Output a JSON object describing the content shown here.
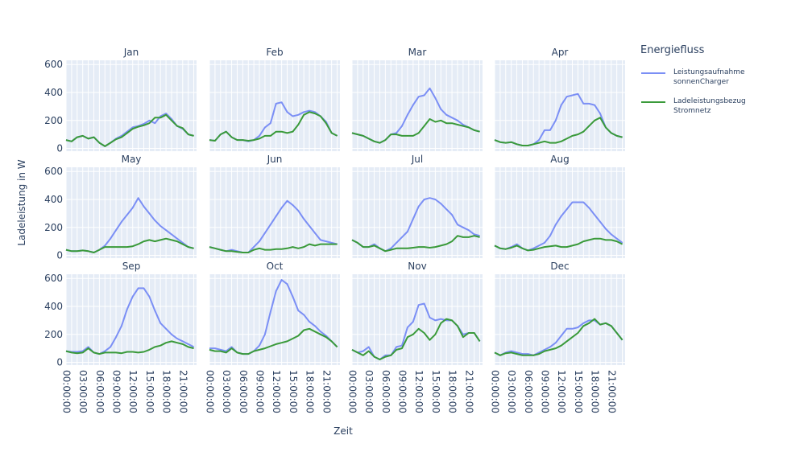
{
  "chart_data": {
    "type": "line",
    "xlabel": "Zeit",
    "ylabel": "Ladeleistung in W",
    "ylim": [
      -20,
      630
    ],
    "yticks": [
      "0",
      "200",
      "400",
      "600"
    ],
    "xticks": [
      "00:00:00",
      "03:00:00",
      "06:00:00",
      "09:00:00",
      "12:00:00",
      "15:00:00",
      "18:00:00",
      "21:00:00"
    ],
    "x_hours": [
      0,
      1,
      2,
      3,
      4,
      5,
      6,
      7,
      8,
      9,
      10,
      11,
      12,
      13,
      14,
      15,
      16,
      17,
      18,
      19,
      20,
      21,
      22,
      23
    ],
    "legend": {
      "title": "Energiefluss",
      "placement": "right",
      "items": [
        {
          "line1": "Leistungsaufnahme",
          "line2": "sonnenCharger",
          "color": "#7b8ff5"
        },
        {
          "line1": "Ladeleistungsbezug",
          "line2": "Stromnetz",
          "color": "#3a9a3a"
        }
      ]
    },
    "panels": [
      {
        "title": "Jan",
        "series": [
          {
            "values": [
              60,
              50,
              80,
              90,
              70,
              80,
              40,
              15,
              40,
              70,
              90,
              120,
              150,
              160,
              175,
              200,
              180,
              230,
              250,
              210,
              160,
              140,
              100,
              90
            ]
          },
          {
            "values": [
              60,
              50,
              80,
              90,
              70,
              80,
              40,
              15,
              40,
              65,
              80,
              110,
              140,
              155,
              165,
              180,
              220,
              220,
              240,
              200,
              160,
              145,
              100,
              90
            ]
          }
        ]
      },
      {
        "title": "Feb",
        "series": [
          {
            "values": [
              60,
              55,
              100,
              120,
              80,
              60,
              60,
              50,
              60,
              90,
              150,
              180,
              320,
              330,
              260,
              230,
              240,
              260,
              270,
              260,
              230,
              190,
              110,
              90
            ]
          },
          {
            "values": [
              60,
              55,
              100,
              120,
              80,
              60,
              60,
              55,
              60,
              70,
              90,
              90,
              120,
              120,
              110,
              120,
              170,
              240,
              260,
              250,
              230,
              180,
              110,
              90
            ]
          }
        ]
      },
      {
        "title": "Mar",
        "series": [
          {
            "values": [
              110,
              100,
              90,
              70,
              50,
              40,
              60,
              100,
              110,
              160,
              240,
              310,
              370,
              380,
              430,
              360,
              280,
              240,
              220,
              200,
              170,
              150,
              130,
              120
            ]
          },
          {
            "values": [
              110,
              100,
              90,
              70,
              50,
              40,
              60,
              100,
              100,
              90,
              90,
              90,
              110,
              160,
              210,
              190,
              200,
              180,
              180,
              170,
              160,
              150,
              130,
              120
            ]
          }
        ]
      },
      {
        "title": "Apr",
        "series": [
          {
            "values": [
              60,
              45,
              40,
              45,
              30,
              20,
              20,
              30,
              60,
              130,
              130,
              200,
              310,
              370,
              380,
              390,
              320,
              320,
              310,
              250,
              150,
              110,
              90,
              80
            ]
          },
          {
            "values": [
              60,
              45,
              40,
              45,
              30,
              20,
              20,
              30,
              40,
              50,
              40,
              40,
              50,
              70,
              90,
              100,
              120,
              160,
              200,
              220,
              150,
              110,
              90,
              80
            ]
          }
        ]
      },
      {
        "title": "May",
        "series": [
          {
            "values": [
              40,
              30,
              30,
              35,
              30,
              20,
              40,
              70,
              120,
              180,
              240,
              290,
              340,
              410,
              350,
              300,
              250,
              210,
              180,
              150,
              120,
              90,
              60,
              50
            ]
          },
          {
            "values": [
              40,
              30,
              30,
              35,
              30,
              20,
              40,
              60,
              60,
              60,
              60,
              60,
              65,
              80,
              100,
              110,
              100,
              110,
              120,
              110,
              100,
              80,
              60,
              50
            ]
          }
        ]
      },
      {
        "title": "Jun",
        "series": [
          {
            "values": [
              60,
              50,
              40,
              30,
              40,
              30,
              20,
              20,
              60,
              100,
              160,
              220,
              280,
              340,
              390,
              360,
              320,
              260,
              210,
              160,
              110,
              100,
              90,
              80
            ]
          },
          {
            "values": [
              60,
              50,
              40,
              30,
              30,
              25,
              20,
              20,
              40,
              50,
              40,
              40,
              45,
              45,
              50,
              60,
              50,
              60,
              80,
              70,
              80,
              80,
              80,
              80
            ]
          }
        ]
      },
      {
        "title": "Jul",
        "series": [
          {
            "values": [
              110,
              90,
              60,
              60,
              80,
              50,
              30,
              50,
              90,
              130,
              170,
              260,
              350,
              400,
              410,
              400,
              370,
              330,
              290,
              220,
              200,
              180,
              150,
              140
            ]
          },
          {
            "values": [
              110,
              90,
              60,
              60,
              70,
              50,
              30,
              40,
              50,
              50,
              50,
              55,
              60,
              60,
              55,
              60,
              70,
              80,
              100,
              140,
              130,
              130,
              140,
              130
            ]
          }
        ]
      },
      {
        "title": "Aug",
        "series": [
          {
            "values": [
              70,
              50,
              45,
              60,
              80,
              50,
              35,
              50,
              70,
              90,
              140,
              220,
              280,
              330,
              380,
              380,
              380,
              340,
              290,
              240,
              190,
              150,
              120,
              90
            ]
          },
          {
            "values": [
              70,
              50,
              45,
              55,
              70,
              50,
              35,
              40,
              50,
              60,
              65,
              70,
              60,
              60,
              70,
              80,
              100,
              110,
              120,
              120,
              110,
              110,
              100,
              80
            ]
          }
        ]
      },
      {
        "title": "Sep",
        "series": [
          {
            "values": [
              80,
              75,
              75,
              80,
              110,
              70,
              60,
              80,
              110,
              180,
              260,
              380,
              470,
              530,
              530,
              470,
              370,
              280,
              240,
              200,
              170,
              150,
              130,
              110
            ]
          },
          {
            "values": [
              80,
              70,
              65,
              70,
              100,
              70,
              60,
              70,
              70,
              70,
              65,
              75,
              75,
              70,
              75,
              90,
              110,
              120,
              140,
              150,
              140,
              130,
              110,
              100
            ]
          }
        ]
      },
      {
        "title": "Oct",
        "series": [
          {
            "values": [
              100,
              100,
              90,
              80,
              110,
              70,
              60,
              60,
              80,
              120,
              200,
              360,
              510,
              590,
              560,
              470,
              370,
              340,
              290,
              260,
              220,
              190,
              150,
              110
            ]
          },
          {
            "values": [
              90,
              80,
              80,
              70,
              100,
              70,
              60,
              60,
              80,
              90,
              100,
              115,
              130,
              140,
              150,
              170,
              190,
              230,
              240,
              220,
              200,
              180,
              150,
              110
            ]
          }
        ]
      },
      {
        "title": "Nov",
        "series": [
          {
            "values": [
              90,
              70,
              80,
              110,
              40,
              20,
              50,
              50,
              110,
              120,
              250,
              290,
              410,
              420,
              320,
              300,
              310,
              300,
              300,
              260,
              200,
              210,
              210,
              150
            ]
          },
          {
            "values": [
              90,
              70,
              50,
              80,
              40,
              20,
              40,
              50,
              90,
              100,
              180,
              200,
              240,
              210,
              160,
              200,
              280,
              310,
              300,
              260,
              180,
              210,
              210,
              150
            ]
          }
        ]
      },
      {
        "title": "Dec",
        "series": [
          {
            "values": [
              70,
              50,
              70,
              80,
              70,
              60,
              60,
              50,
              70,
              90,
              110,
              140,
              190,
              240,
              240,
              250,
              280,
              300,
              300,
              270,
              280,
              260,
              210,
              160
            ]
          },
          {
            "values": [
              70,
              50,
              65,
              70,
              60,
              50,
              50,
              50,
              60,
              80,
              90,
              100,
              120,
              150,
              180,
              210,
              260,
              280,
              310,
              270,
              280,
              260,
              210,
              160
            ]
          }
        ]
      }
    ]
  }
}
